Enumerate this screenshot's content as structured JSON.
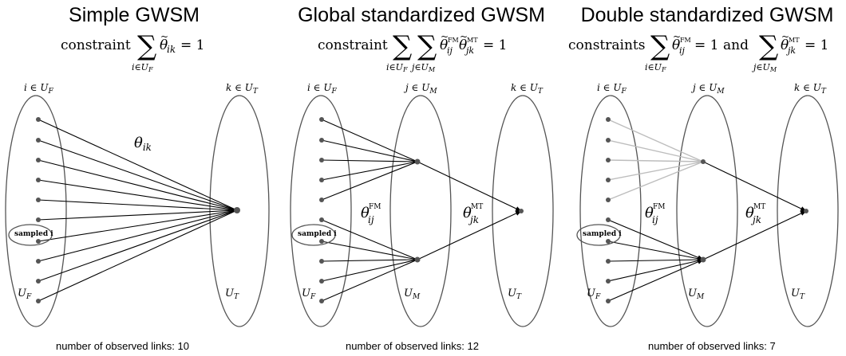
{
  "panels": [
    {
      "title": "Simple GWSM",
      "constraint_word": "constraint",
      "constraint_tail": "= 1",
      "sum_sub_1": "i∈U",
      "sum_sub_1b": "F",
      "theta_main": "θ",
      "theta_sub": "ik",
      "set_left": "i ∈ U",
      "set_left_sub": "F",
      "set_right": "k ∈ U",
      "set_right_sub": "T",
      "edge_label": "θ",
      "edge_label_sub": "ik",
      "sampled_label": "sampled i",
      "ul_left": "U",
      "ul_left_sub": "F",
      "ul_right": "U",
      "ul_right_sub": "T",
      "footer": "number of observed links: 10"
    },
    {
      "title": "Global standardized GWSM",
      "constraint_word": "constraint",
      "constraint_tail": "= 1",
      "set_left": "i ∈ U",
      "set_left_sub": "F",
      "set_mid": "j ∈ U",
      "set_mid_sub": "M",
      "set_right": "k ∈ U",
      "set_right_sub": "T",
      "theta_fm": "θ",
      "theta_fm_sup": "FM",
      "theta_fm_sub": "ij",
      "theta_mt": "θ",
      "theta_mt_sup": "MT",
      "theta_mt_sub": "jk",
      "sampled_label": "sampled i",
      "ul_left": "U",
      "ul_left_sub": "F",
      "ul_mid": "U",
      "ul_mid_sub": "M",
      "ul_right": "U",
      "ul_right_sub": "T",
      "footer": "number of observed links: 12"
    },
    {
      "title": "Double standardized GWSM",
      "constraint_word": "constraints",
      "and_word": "and",
      "constraint_tail": "= 1",
      "set_left": "i ∈ U",
      "set_left_sub": "F",
      "set_mid": "j ∈ U",
      "set_mid_sub": "M",
      "set_right": "k ∈ U",
      "set_right_sub": "T",
      "theta_fm": "θ",
      "theta_fm_sup": "FM",
      "theta_fm_sub": "ij",
      "theta_mt": "θ",
      "theta_mt_sup": "MT",
      "theta_mt_sub": "jk",
      "sampled_label": "sampled i",
      "ul_left": "U",
      "ul_left_sub": "F",
      "ul_mid": "U",
      "ul_mid_sub": "M",
      "ul_right": "U",
      "ul_right_sub": "T",
      "footer": "number of observed links: 7"
    }
  ]
}
